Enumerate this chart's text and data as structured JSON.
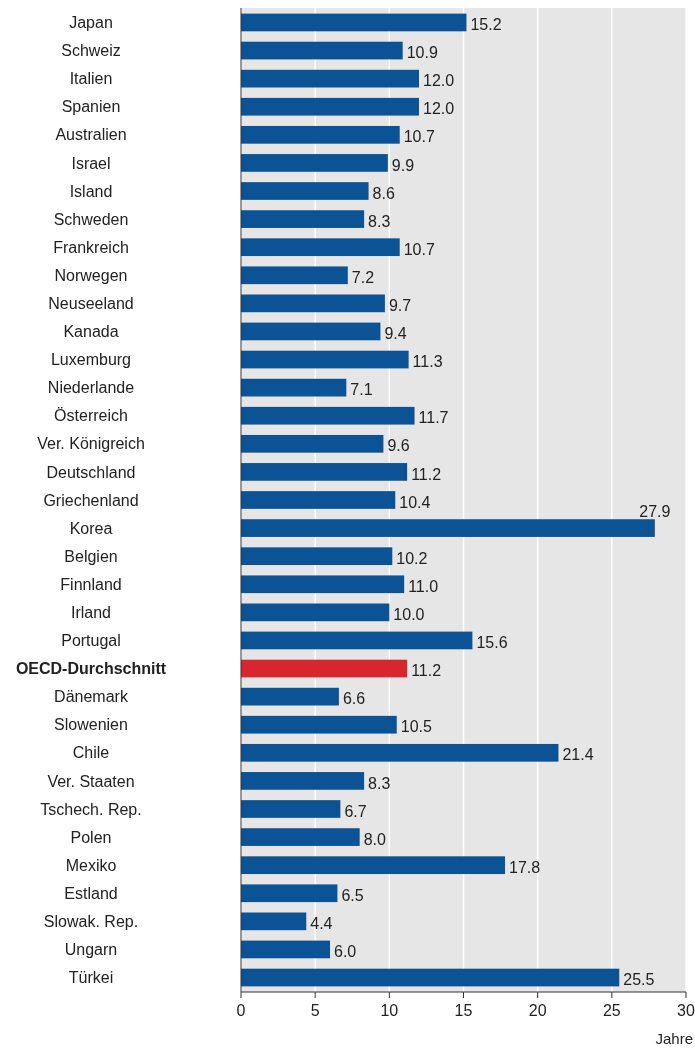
{
  "chart_data": {
    "type": "bar",
    "orientation": "horizontal",
    "xlabel": "Jahre",
    "categories": [
      "Japan",
      "Schweiz",
      "Italien",
      "Spanien",
      "Australien",
      "Israel",
      "Island",
      "Schweden",
      "Frankreich",
      "Norwegen",
      "Neuseeland",
      "Kanada",
      "Luxemburg",
      "Niederlande",
      "Österreich",
      "Ver. Königreich",
      "Deutschland",
      "Griechenland",
      "Korea",
      "Belgien",
      "Finnland",
      "Irland",
      "Portugal",
      "OECD-Durchschnitt",
      "Dänemark",
      "Slowenien",
      "Chile",
      "Ver. Staaten",
      "Tschech. Rep.",
      "Polen",
      "Mexiko",
      "Estland",
      "Slowak. Rep.",
      "Ungarn",
      "Türkei"
    ],
    "values": [
      15.2,
      10.9,
      12.0,
      12.0,
      10.7,
      9.9,
      8.6,
      8.3,
      10.7,
      7.2,
      9.7,
      9.4,
      11.3,
      7.1,
      11.7,
      9.6,
      11.2,
      10.4,
      27.9,
      10.2,
      11.0,
      10.0,
      15.6,
      11.2,
      6.6,
      10.5,
      21.4,
      8.3,
      6.7,
      8.0,
      17.8,
      6.5,
      4.4,
      6.0,
      25.5
    ],
    "value_labels": [
      "15.2",
      "10.9",
      "12.0",
      "12.0",
      "10.7",
      "9.9",
      "8.6",
      "8.3",
      "10.7",
      "7.2",
      "9.7",
      "9.4",
      "11.3",
      "7.1",
      "11.7",
      "9.6",
      "11.2",
      "10.4",
      "27.9",
      "10.2",
      "11.0",
      "10.0",
      "15.6",
      "11.2",
      "6.6",
      "10.5",
      "21.4",
      "8.3",
      "6.7",
      "8.0",
      "17.8",
      "6.5",
      "4.4",
      "6.0",
      "25.5"
    ],
    "colors": [
      "#0b5394",
      "#0b5394",
      "#0b5394",
      "#0b5394",
      "#0b5394",
      "#0b5394",
      "#0b5394",
      "#0b5394",
      "#0b5394",
      "#0b5394",
      "#0b5394",
      "#0b5394",
      "#0b5394",
      "#0b5394",
      "#0b5394",
      "#0b5394",
      "#0b5394",
      "#0b5394",
      "#0b5394",
      "#0b5394",
      "#0b5394",
      "#0b5394",
      "#0b5394",
      "#d7262d",
      "#0b5394",
      "#0b5394",
      "#0b5394",
      "#0b5394",
      "#0b5394",
      "#0b5394",
      "#0b5394",
      "#0b5394",
      "#0b5394",
      "#0b5394",
      "#0b5394"
    ],
    "xlim": [
      0,
      30
    ],
    "xticks": [
      0,
      5,
      10,
      15,
      20,
      25,
      30
    ],
    "grid": "x"
  }
}
